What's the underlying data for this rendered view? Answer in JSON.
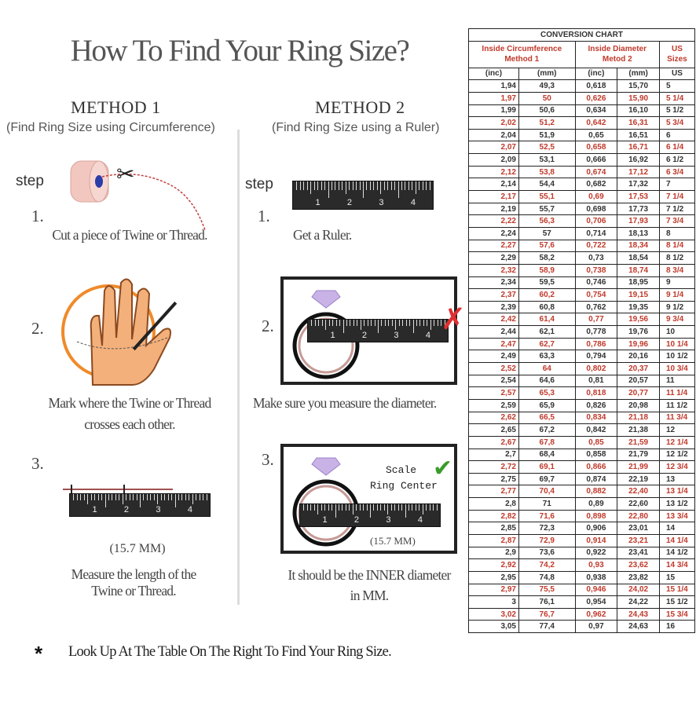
{
  "title": "How To Find Your Ring Size?",
  "method1": {
    "heading": "METHOD 1",
    "subtitle": "(Find Ring Size using Circumference)",
    "step_label": "step",
    "steps": [
      {
        "number": "1.",
        "caption": [
          "Cut a piece of Twine or Thread."
        ]
      },
      {
        "number": "2.",
        "caption": [
          "Mark where the Twine or Thread",
          "crosses each other."
        ]
      },
      {
        "number": "3.",
        "measurement": "(15.7 MM)",
        "caption": [
          "Measure the length of the",
          "Twine or Thread."
        ]
      }
    ]
  },
  "method2": {
    "heading": "METHOD 2",
    "subtitle": "(Find Ring Size using a Ruler)",
    "step_label": "step",
    "steps": [
      {
        "number": "1.",
        "caption": [
          "Get a Ruler."
        ]
      },
      {
        "number": "2.",
        "caption": [
          "Make sure you measure the diameter."
        ]
      },
      {
        "number": "3.",
        "scale_label": "Scale",
        "center_label": "Ring Center",
        "measurement": "(15.7 MM)",
        "caption": [
          "It should be the INNER diameter",
          "in MM."
        ]
      }
    ]
  },
  "ruler_numbers": [
    "1",
    "2",
    "3",
    "4"
  ],
  "footer": {
    "bullet": "*",
    "text": "Look Up At The Table On The Right To Find Your Ring Size."
  },
  "colors": {
    "accent_red": "#c0392b",
    "check_green": "#3a9b2a",
    "wrong_red": "#e03030"
  },
  "icons": [
    "twine-spool-icon",
    "scissors-icon",
    "hand-icon",
    "pen-icon",
    "diamond-ring-icon",
    "cross-icon",
    "check-icon"
  ],
  "table": {
    "title": "CONVERSION CHART",
    "group_headers": [
      "Inside Circumference Method 1",
      "Inside Diameter Metod 2",
      "US Sizes"
    ],
    "units": [
      "(inc)",
      "(mm)",
      "(inc)",
      "(mm)",
      "US"
    ],
    "rows": [
      [
        "1,94",
        "49,3",
        "0,618",
        "15,70",
        "5"
      ],
      [
        "1,97",
        "50",
        "0,626",
        "15,90",
        "5 1/4"
      ],
      [
        "1,99",
        "50,6",
        "0,634",
        "16,10",
        "5 1/2"
      ],
      [
        "2,02",
        "51,2",
        "0,642",
        "16,31",
        "5 3/4"
      ],
      [
        "2,04",
        "51,9",
        "0,65",
        "16,51",
        "6"
      ],
      [
        "2,07",
        "52,5",
        "0,658",
        "16,71",
        "6 1/4"
      ],
      [
        "2,09",
        "53,1",
        "0,666",
        "16,92",
        "6 1/2"
      ],
      [
        "2,12",
        "53,8",
        "0,674",
        "17,12",
        "6 3/4"
      ],
      [
        "2,14",
        "54,4",
        "0,682",
        "17,32",
        "7"
      ],
      [
        "2,17",
        "55,1",
        "0,69",
        "17,53",
        "7 1/4"
      ],
      [
        "2,19",
        "55,7",
        "0,698",
        "17,73",
        "7 1/2"
      ],
      [
        "2,22",
        "56,3",
        "0,706",
        "17,93",
        "7 3/4"
      ],
      [
        "2,24",
        "57",
        "0,714",
        "18,13",
        "8"
      ],
      [
        "2,27",
        "57,6",
        "0,722",
        "18,34",
        "8 1/4"
      ],
      [
        "2,29",
        "58,2",
        "0,73",
        "18,54",
        "8 1/2"
      ],
      [
        "2,32",
        "58,9",
        "0,738",
        "18,74",
        "8 3/4"
      ],
      [
        "2,34",
        "59,5",
        "0,746",
        "18,95",
        "9"
      ],
      [
        "2,37",
        "60,2",
        "0,754",
        "19,15",
        "9 1/4"
      ],
      [
        "2,39",
        "60,8",
        "0,762",
        "19,35",
        "9 1/2"
      ],
      [
        "2,42",
        "61,4",
        "0,77",
        "19,56",
        "9 3/4"
      ],
      [
        "2,44",
        "62,1",
        "0,778",
        "19,76",
        "10"
      ],
      [
        "2,47",
        "62,7",
        "0,786",
        "19,96",
        "10 1/4"
      ],
      [
        "2,49",
        "63,3",
        "0,794",
        "20,16",
        "10 1/2"
      ],
      [
        "2,52",
        "64",
        "0,802",
        "20,37",
        "10 3/4"
      ],
      [
        "2,54",
        "64,6",
        "0,81",
        "20,57",
        "11"
      ],
      [
        "2,57",
        "65,3",
        "0,818",
        "20,77",
        "11 1/4"
      ],
      [
        "2,59",
        "65,9",
        "0,826",
        "20,98",
        "11 1/2"
      ],
      [
        "2,62",
        "66,5",
        "0,834",
        "21,18",
        "11 3/4"
      ],
      [
        "2,65",
        "67,2",
        "0,842",
        "21,38",
        "12"
      ],
      [
        "2,67",
        "67,8",
        "0,85",
        "21,59",
        "12 1/4"
      ],
      [
        "2,7",
        "68,4",
        "0,858",
        "21,79",
        "12 1/2"
      ],
      [
        "2,72",
        "69,1",
        "0,866",
        "21,99",
        "12 3/4"
      ],
      [
        "2,75",
        "69,7",
        "0,874",
        "22,19",
        "13"
      ],
      [
        "2,77",
        "70,4",
        "0,882",
        "22,40",
        "13 1/4"
      ],
      [
        "2,8",
        "71",
        "0,89",
        "22,60",
        "13 1/2"
      ],
      [
        "2,82",
        "71,6",
        "0,898",
        "22,80",
        "13 3/4"
      ],
      [
        "2,85",
        "72,3",
        "0,906",
        "23,01",
        "14"
      ],
      [
        "2,87",
        "72,9",
        "0,914",
        "23,21",
        "14 1/4"
      ],
      [
        "2,9",
        "73,6",
        "0,922",
        "23,41",
        "14 1/2"
      ],
      [
        "2,92",
        "74,2",
        "0,93",
        "23,62",
        "14 3/4"
      ],
      [
        "2,95",
        "74,8",
        "0,938",
        "23,82",
        "15"
      ],
      [
        "2,97",
        "75,5",
        "0,946",
        "24,02",
        "15 1/4"
      ],
      [
        "3",
        "76,1",
        "0,954",
        "24,22",
        "15 1/2"
      ],
      [
        "3,02",
        "76,7",
        "0,962",
        "24,43",
        "15 3/4"
      ],
      [
        "3,05",
        "77,4",
        "0,97",
        "24,63",
        "16"
      ]
    ]
  }
}
